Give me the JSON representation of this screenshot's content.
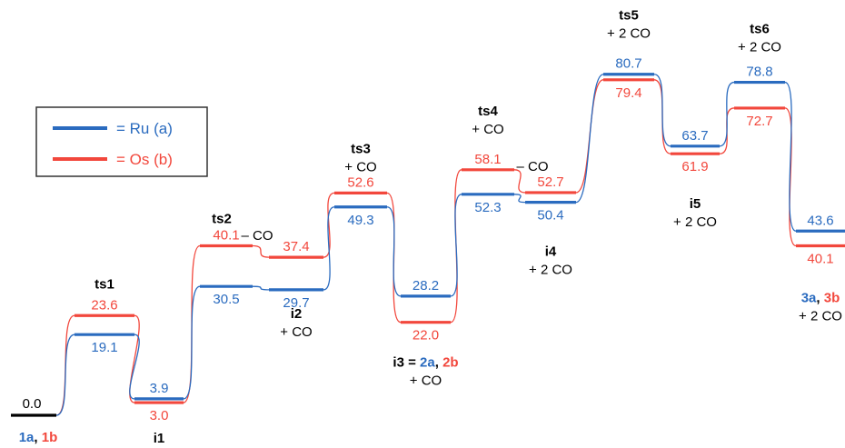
{
  "colors": {
    "ru": "#2a6bbf",
    "os": "#f2473c",
    "ref": "#000000",
    "legend_border": "#333333"
  },
  "legend": [
    {
      "series": "ru",
      "label": "= Ru (a)"
    },
    {
      "series": "os",
      "label": "= Os (b)"
    }
  ],
  "energy_levels": [
    {
      "id": "1",
      "ru": 0.0,
      "os": 0.0,
      "single": true,
      "value_text": "0.0",
      "label_parts": [
        {
          "t": "1a",
          "c": "ru"
        },
        {
          "t": ", ",
          "c": "ref"
        },
        {
          "t": "1b",
          "c": "os"
        }
      ]
    },
    {
      "id": "ts1",
      "ru": 19.1,
      "os": 23.6,
      "label_parts": [
        {
          "t": "ts1",
          "c": "ref"
        }
      ]
    },
    {
      "id": "i1",
      "ru": 3.9,
      "os": 3.0,
      "label_parts": [
        {
          "t": "i1",
          "c": "ref"
        }
      ]
    },
    {
      "id": "ts2",
      "ru": 30.5,
      "os": 40.1,
      "label_parts": [
        {
          "t": "ts2",
          "c": "ref"
        }
      ],
      "extra": "– CO"
    },
    {
      "id": "i2",
      "ru": 29.7,
      "os": 37.4,
      "label_parts": [
        {
          "t": "i2",
          "c": "ref"
        }
      ],
      "sub": "+ CO"
    },
    {
      "id": "ts3",
      "ru": 49.3,
      "os": 52.6,
      "label_parts": [
        {
          "t": "ts3",
          "c": "ref"
        }
      ],
      "sub": "+ CO"
    },
    {
      "id": "i3",
      "ru": 28.2,
      "os": 22.0,
      "sub": "+ CO",
      "label_parts": [
        {
          "t": "i3 = ",
          "c": "ref"
        },
        {
          "t": "2a",
          "c": "ru"
        },
        {
          "t": ", ",
          "c": "ref"
        },
        {
          "t": "2b",
          "c": "os"
        }
      ]
    },
    {
      "id": "ts4",
      "ru": 52.3,
      "os": 58.1,
      "label_parts": [
        {
          "t": "ts4",
          "c": "ref"
        }
      ],
      "sub": "+ CO",
      "extra": "– CO"
    },
    {
      "id": "i4",
      "ru": 50.4,
      "os": 52.7,
      "label_parts": [
        {
          "t": "i4",
          "c": "ref"
        }
      ],
      "sub": "+ 2 CO"
    },
    {
      "id": "ts5",
      "ru": 80.7,
      "os": 79.4,
      "label_parts": [
        {
          "t": "ts5",
          "c": "ref"
        }
      ],
      "sub": "+ 2 CO"
    },
    {
      "id": "i5",
      "ru": 63.7,
      "os": 61.9,
      "label_parts": [
        {
          "t": "i5",
          "c": "ref"
        }
      ],
      "sub": "+ 2 CO"
    },
    {
      "id": "ts6",
      "ru": 78.8,
      "os": 72.7,
      "label_parts": [
        {
          "t": "ts6",
          "c": "ref"
        }
      ],
      "sub": "+ 2 CO"
    },
    {
      "id": "3",
      "ru": 43.6,
      "os": 40.1,
      "sub": "+ 2 CO",
      "label_parts": [
        {
          "t": "3a",
          "c": "ru"
        },
        {
          "t": ", ",
          "c": "ref"
        },
        {
          "t": "3b",
          "c": "os"
        }
      ]
    }
  ]
}
